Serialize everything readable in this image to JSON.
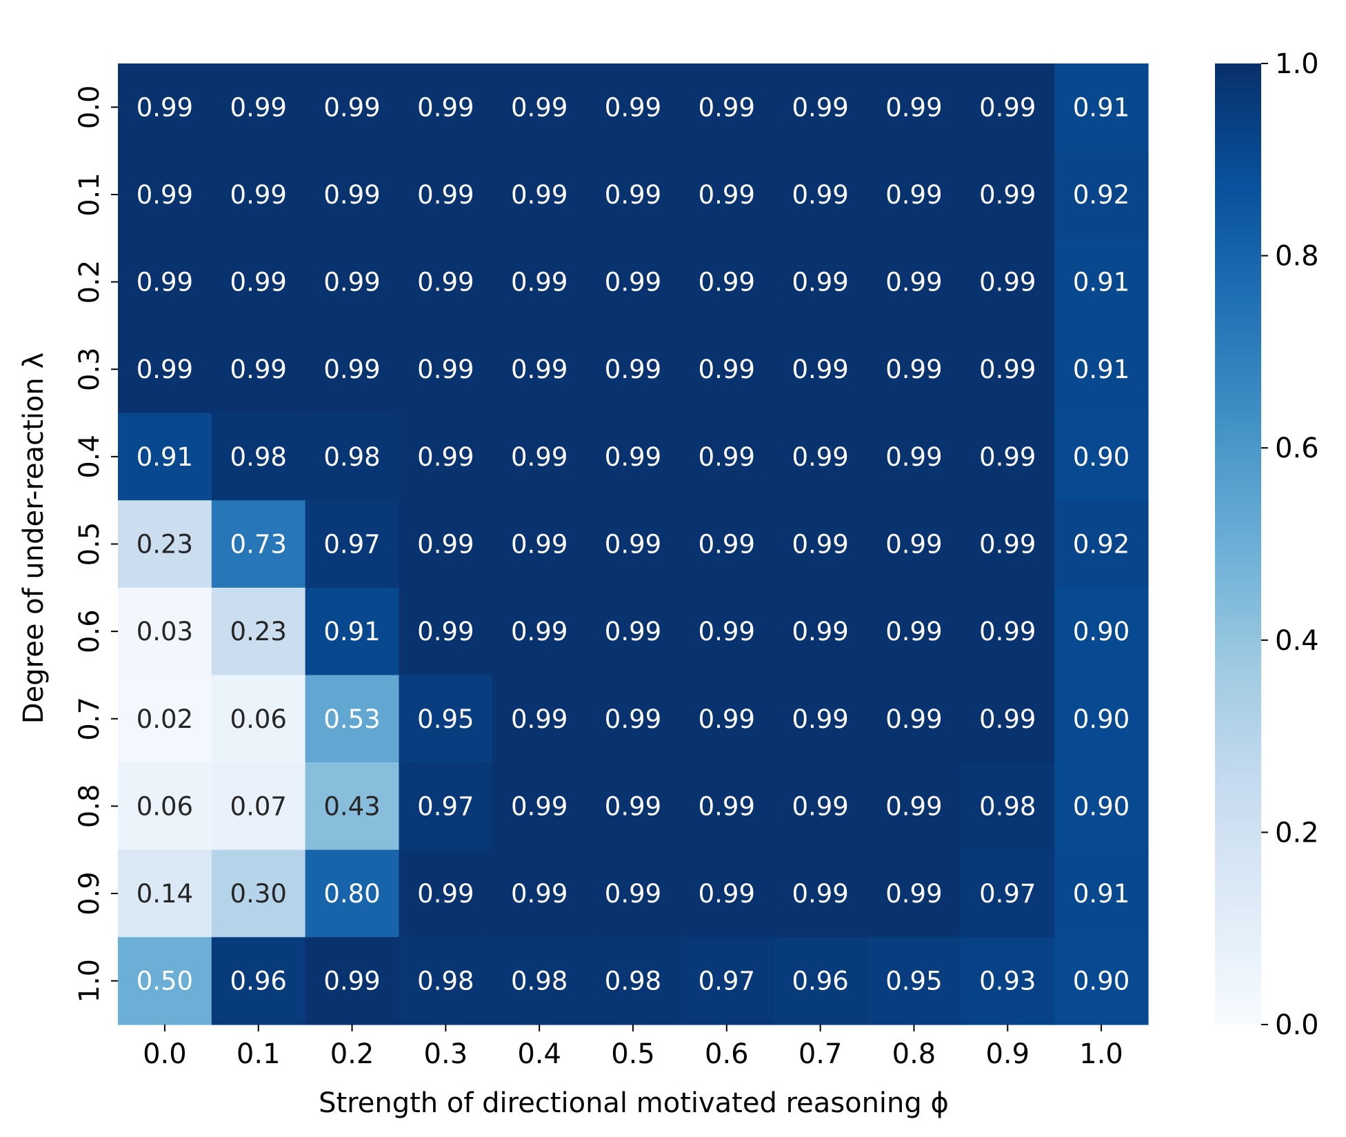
{
  "chart_data": {
    "type": "heatmap",
    "xlabel": "Strength of directional motivated reasoning ϕ",
    "ylabel": "Degree of under-reaction λ",
    "x": [
      "0.0",
      "0.1",
      "0.2",
      "0.3",
      "0.4",
      "0.5",
      "0.6",
      "0.7",
      "0.8",
      "0.9",
      "1.0"
    ],
    "y": [
      "0.0",
      "0.1",
      "0.2",
      "0.3",
      "0.4",
      "0.5",
      "0.6",
      "0.7",
      "0.8",
      "0.9",
      "1.0"
    ],
    "values": [
      [
        "0.99",
        "0.99",
        "0.99",
        "0.99",
        "0.99",
        "0.99",
        "0.99",
        "0.99",
        "0.99",
        "0.99",
        "0.91"
      ],
      [
        "0.99",
        "0.99",
        "0.99",
        "0.99",
        "0.99",
        "0.99",
        "0.99",
        "0.99",
        "0.99",
        "0.99",
        "0.92"
      ],
      [
        "0.99",
        "0.99",
        "0.99",
        "0.99",
        "0.99",
        "0.99",
        "0.99",
        "0.99",
        "0.99",
        "0.99",
        "0.91"
      ],
      [
        "0.99",
        "0.99",
        "0.99",
        "0.99",
        "0.99",
        "0.99",
        "0.99",
        "0.99",
        "0.99",
        "0.99",
        "0.91"
      ],
      [
        "0.91",
        "0.98",
        "0.98",
        "0.99",
        "0.99",
        "0.99",
        "0.99",
        "0.99",
        "0.99",
        "0.99",
        "0.90"
      ],
      [
        "0.23",
        "0.73",
        "0.97",
        "0.99",
        "0.99",
        "0.99",
        "0.99",
        "0.99",
        "0.99",
        "0.99",
        "0.92"
      ],
      [
        "0.03",
        "0.23",
        "0.91",
        "0.99",
        "0.99",
        "0.99",
        "0.99",
        "0.99",
        "0.99",
        "0.99",
        "0.90"
      ],
      [
        "0.02",
        "0.06",
        "0.53",
        "0.95",
        "0.99",
        "0.99",
        "0.99",
        "0.99",
        "0.99",
        "0.99",
        "0.90"
      ],
      [
        "0.06",
        "0.07",
        "0.43",
        "0.97",
        "0.99",
        "0.99",
        "0.99",
        "0.99",
        "0.99",
        "0.98",
        "0.90"
      ],
      [
        "0.14",
        "0.30",
        "0.80",
        "0.99",
        "0.99",
        "0.99",
        "0.99",
        "0.99",
        "0.99",
        "0.97",
        "0.91"
      ],
      [
        "0.50",
        "0.96",
        "0.99",
        "0.98",
        "0.98",
        "0.98",
        "0.97",
        "0.96",
        "0.95",
        "0.93",
        "0.90"
      ]
    ],
    "colorbar": {
      "range": [
        0,
        1
      ],
      "ticks": [
        "0.0",
        "0.2",
        "0.4",
        "0.6",
        "0.8",
        "1.0"
      ],
      "colormap": "Blues"
    }
  }
}
